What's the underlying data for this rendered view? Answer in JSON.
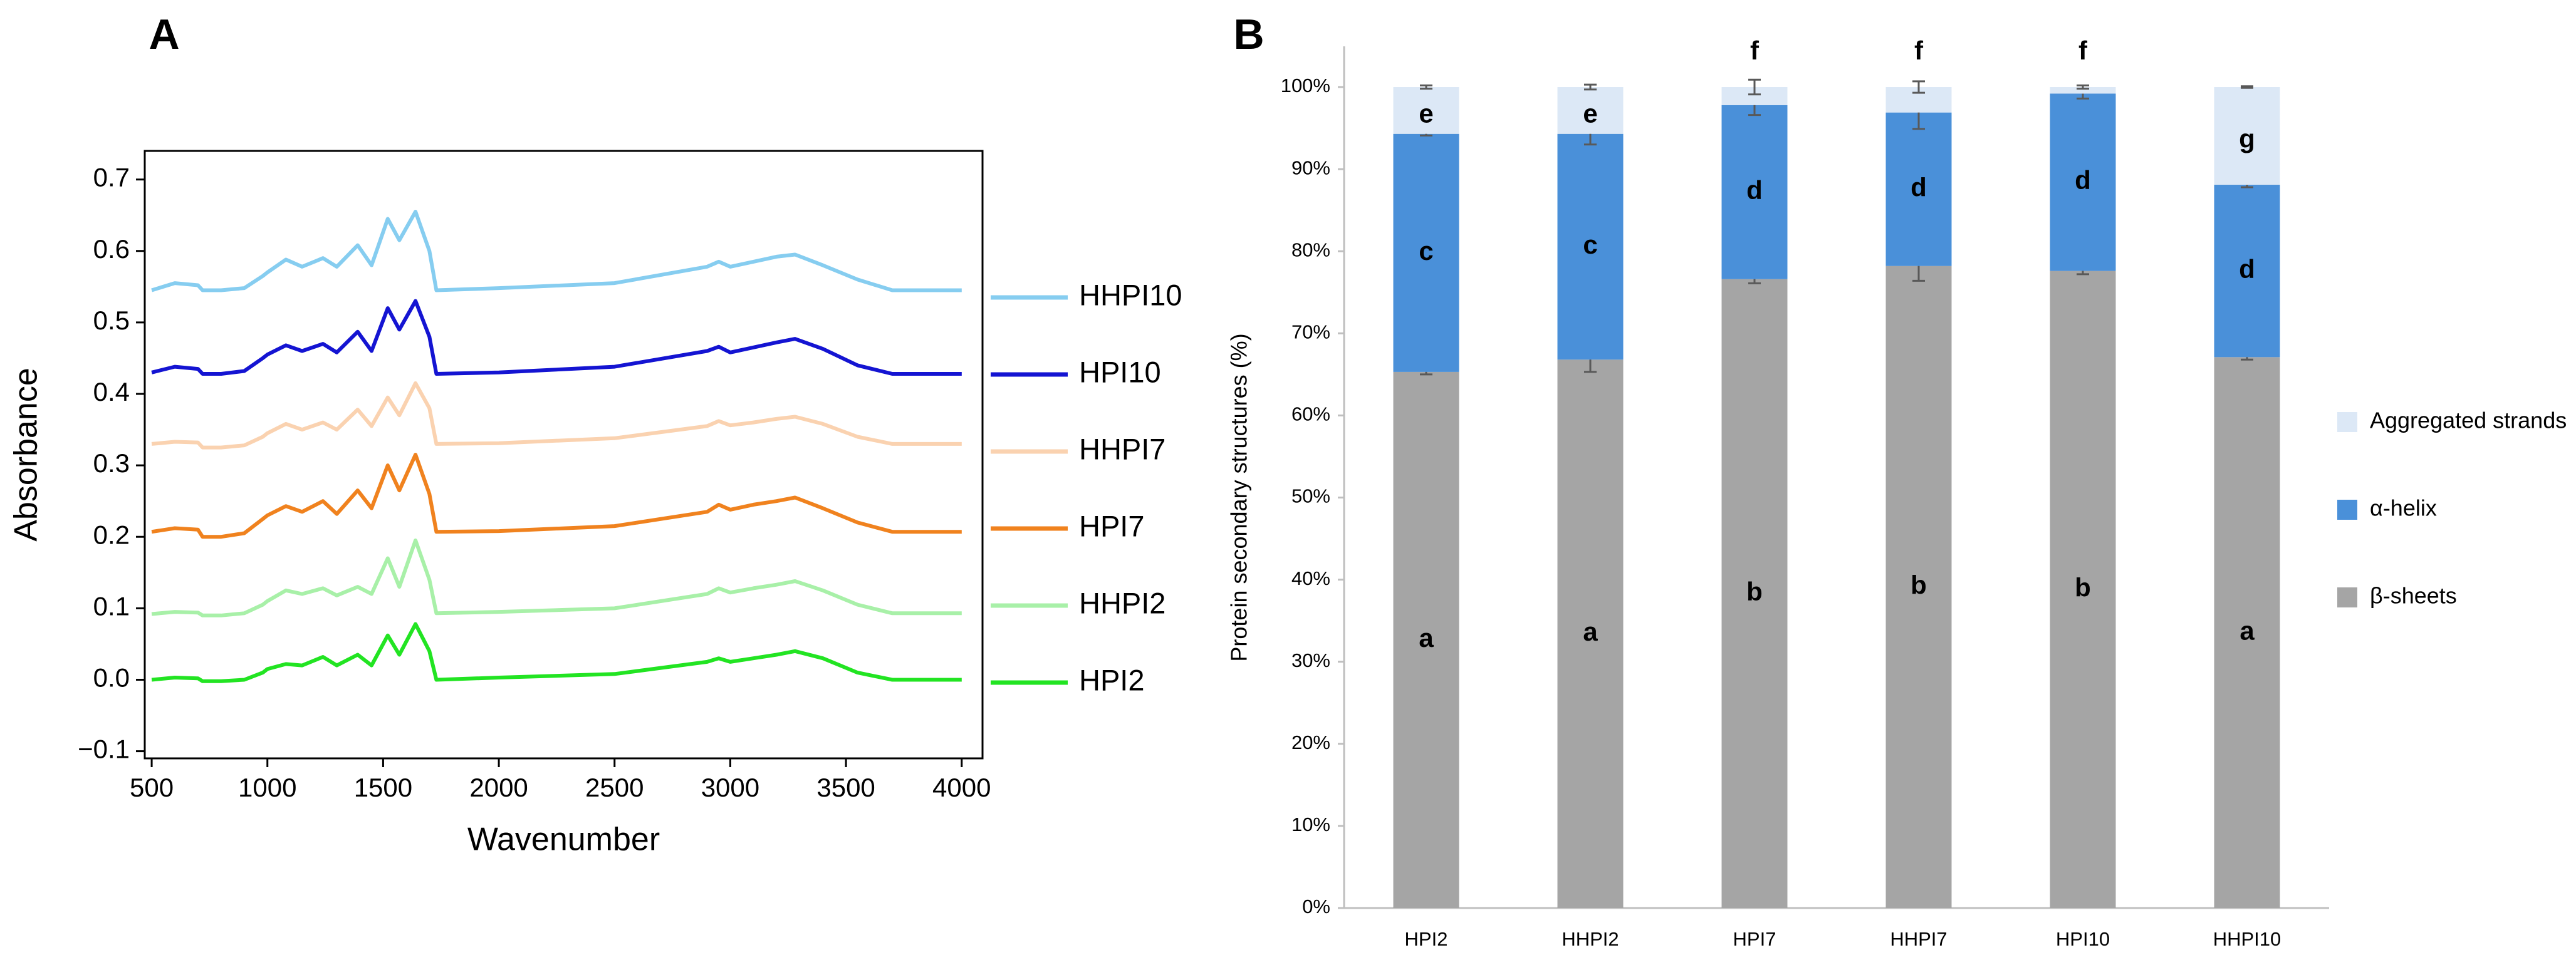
{
  "chart_data": [
    {
      "type": "line",
      "panel": "A",
      "xlabel": "Wavenumber",
      "ylabel": "Absorbance",
      "x": [
        500,
        600,
        700,
        720,
        800,
        900,
        980,
        1000,
        1080,
        1150,
        1240,
        1300,
        1390,
        1450,
        1520,
        1570,
        1640,
        1700,
        1730,
        2000,
        2500,
        2900,
        2950,
        3000,
        3100,
        3200,
        3280,
        3400,
        3550,
        3700,
        4000
      ],
      "series": [
        {
          "name": "HHPI10",
          "color": "#86cdf0",
          "values": [
            0.545,
            0.555,
            0.552,
            0.545,
            0.545,
            0.548,
            0.565,
            0.57,
            0.588,
            0.578,
            0.59,
            0.578,
            0.608,
            0.58,
            0.645,
            0.615,
            0.655,
            0.6,
            0.545,
            0.548,
            0.555,
            0.578,
            0.585,
            0.578,
            0.585,
            0.592,
            0.595,
            0.58,
            0.56,
            0.545,
            0.545
          ]
        },
        {
          "name": "HPI10",
          "color": "#1414d2",
          "values": [
            0.43,
            0.438,
            0.435,
            0.428,
            0.428,
            0.432,
            0.45,
            0.455,
            0.468,
            0.46,
            0.47,
            0.458,
            0.487,
            0.46,
            0.52,
            0.49,
            0.53,
            0.48,
            0.428,
            0.43,
            0.438,
            0.46,
            0.466,
            0.458,
            0.465,
            0.472,
            0.477,
            0.463,
            0.44,
            0.428,
            0.428
          ]
        },
        {
          "name": "HHPI7",
          "color": "#fad2b0",
          "values": [
            0.33,
            0.333,
            0.332,
            0.325,
            0.325,
            0.328,
            0.34,
            0.345,
            0.358,
            0.35,
            0.36,
            0.35,
            0.378,
            0.355,
            0.395,
            0.37,
            0.415,
            0.38,
            0.33,
            0.331,
            0.338,
            0.355,
            0.362,
            0.356,
            0.36,
            0.365,
            0.368,
            0.358,
            0.34,
            0.33,
            0.33
          ]
        },
        {
          "name": "HPI7",
          "color": "#f0821e",
          "values": [
            0.207,
            0.212,
            0.21,
            0.2,
            0.2,
            0.205,
            0.225,
            0.23,
            0.243,
            0.235,
            0.25,
            0.232,
            0.265,
            0.24,
            0.3,
            0.265,
            0.315,
            0.26,
            0.207,
            0.208,
            0.215,
            0.235,
            0.245,
            0.238,
            0.245,
            0.25,
            0.255,
            0.24,
            0.22,
            0.207,
            0.207
          ]
        },
        {
          "name": "HHPI2",
          "color": "#a8f0a8",
          "values": [
            0.092,
            0.095,
            0.094,
            0.09,
            0.09,
            0.093,
            0.105,
            0.11,
            0.125,
            0.12,
            0.128,
            0.118,
            0.13,
            0.12,
            0.17,
            0.13,
            0.195,
            0.14,
            0.093,
            0.095,
            0.1,
            0.12,
            0.128,
            0.122,
            0.128,
            0.133,
            0.138,
            0.125,
            0.105,
            0.093,
            0.093
          ]
        },
        {
          "name": "HPI2",
          "color": "#22e422",
          "values": [
            0.0,
            0.003,
            0.002,
            -0.002,
            -0.002,
            0.0,
            0.01,
            0.015,
            0.022,
            0.02,
            0.032,
            0.02,
            0.035,
            0.02,
            0.062,
            0.035,
            0.078,
            0.04,
            0.0,
            0.003,
            0.008,
            0.025,
            0.03,
            0.025,
            0.03,
            0.035,
            0.04,
            0.03,
            0.01,
            0.0,
            0.0
          ]
        }
      ],
      "xlim": [
        470,
        4090
      ],
      "xticks": [
        500,
        1000,
        1500,
        2000,
        2500,
        3000,
        3500,
        4000
      ],
      "ylim": [
        -0.11,
        0.74
      ],
      "yticks": [
        {
          "value": -0.1,
          "label": "−0.1"
        },
        {
          "value": 0,
          "label": "0.0"
        },
        0.1,
        0.2,
        0.3,
        0.4,
        0.5,
        0.6,
        0.7
      ],
      "legend": "right"
    },
    {
      "type": "bar",
      "stacked": true,
      "panel": "B",
      "ylabel": "Protein secondary structures (%)",
      "categories": [
        "HPI2",
        "HHPI2",
        "HPI7",
        "HHPI7",
        "HPI10",
        "HHPI10"
      ],
      "series": [
        {
          "name": "β-sheets",
          "color": "#a5a5a5",
          "values": [
            65.3,
            66.8,
            76.6,
            78.2,
            77.6,
            67.1
          ],
          "errors": [
            0.3,
            1.5,
            0.5,
            1.8,
            0.4,
            0.3
          ],
          "labels": [
            "a",
            "a",
            "b",
            "b",
            "b",
            "a"
          ]
        },
        {
          "name": "α-helix",
          "color": "#4a90d9",
          "values": [
            29.0,
            27.5,
            21.2,
            18.7,
            21.6,
            21.0
          ],
          "errors": [
            0.2,
            1.3,
            1.2,
            2.0,
            0.6,
            0.3
          ],
          "labels": [
            "c",
            "c",
            "d",
            "d",
            "d",
            "d"
          ]
        },
        {
          "name": "Aggregated strands",
          "color": "#dce8f6",
          "values": [
            5.7,
            5.7,
            2.2,
            3.1,
            0.8,
            11.9
          ],
          "errors": [
            0.2,
            0.3,
            0.9,
            0.7,
            0.2,
            0.1
          ],
          "labels": [
            "e",
            "e",
            "f",
            "f",
            "f",
            "g"
          ]
        }
      ],
      "ylim": [
        0,
        100
      ],
      "yticks": [
        {
          "value": 0,
          "label": "0%"
        },
        {
          "value": 10,
          "label": "10%"
        },
        {
          "value": 20,
          "label": "20%"
        },
        {
          "value": 30,
          "label": "30%"
        },
        {
          "value": 40,
          "label": "40%"
        },
        {
          "value": 50,
          "label": "50%"
        },
        {
          "value": 60,
          "label": "60%"
        },
        {
          "value": 70,
          "label": "70%"
        },
        {
          "value": 80,
          "label": "80%"
        },
        {
          "value": 90,
          "label": "90%"
        },
        {
          "value": 100,
          "label": "100%"
        }
      ],
      "legend": "right"
    }
  ]
}
